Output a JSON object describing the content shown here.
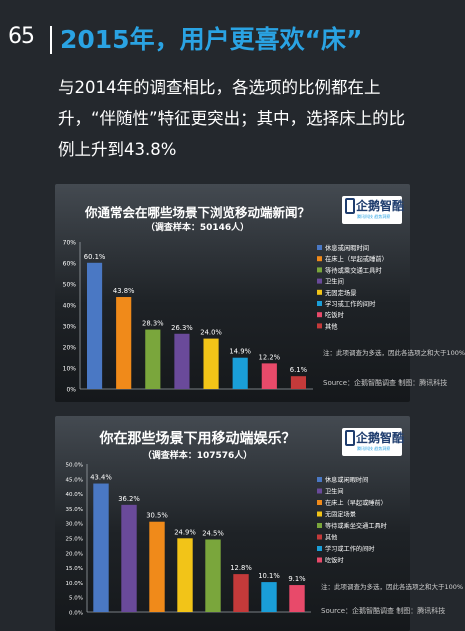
{
  "page": {
    "number": "65",
    "title": "2015年，用户更喜欢“床”",
    "intro": "与2014年的调查相比，各选项的比例都在上升，“伴随性”特征更突出；其中，选择床上的比例上升到43.8%"
  },
  "logo": {
    "name": "企鹅智酷",
    "tagline": "腾讯科技 趋势洞察"
  },
  "chart_data": [
    {
      "type": "bar",
      "title": "你通常会在哪些场景下浏览移动端新闻？",
      "subtitle": "（调查样本：50146人）",
      "categories": [
        "休息或闲暇时间",
        "在床上（早起或睡前）",
        "等待或乘交通工具时",
        "卫生间",
        "无固定场景",
        "学习或工作的间时",
        "吃饭时",
        "其他"
      ],
      "values": [
        60.1,
        43.8,
        28.3,
        26.3,
        24.0,
        14.9,
        12.2,
        6.1
      ],
      "value_labels": [
        "60.1%",
        "43.8%",
        "28.3%",
        "26.3%",
        "24.0%",
        "14.9%",
        "12.2%",
        "6.1%"
      ],
      "colors": [
        "#4a78c4",
        "#f08a1a",
        "#7aa63c",
        "#6a4a9a",
        "#f2c418",
        "#1a9ed8",
        "#e84a6a",
        "#c43a3a"
      ],
      "yticks": [
        "0%",
        "10%",
        "20%",
        "30%",
        "40%",
        "50%",
        "60%",
        "70%"
      ],
      "ylim": [
        0,
        70
      ],
      "legend_position": "right",
      "note": "注：此项调查为多选，因此各选项之和大于100%",
      "source": "Source：企鹅智酷调查 制图：腾讯科技"
    },
    {
      "type": "bar",
      "title": "你在那些场景下用移动端娱乐？",
      "subtitle": "（调查样本：107576人）",
      "categories": [
        "休息或闲暇时间",
        "卫生间",
        "在床上（早起或睡前）",
        "无固定场景",
        "等待或乘坐交通工具时",
        "其他",
        "学习或工作的间时",
        "吃饭时"
      ],
      "values": [
        43.4,
        36.2,
        30.5,
        24.9,
        24.5,
        12.8,
        10.1,
        9.1
      ],
      "value_labels": [
        "43.4%",
        "36.2%",
        "30.5%",
        "24.9%",
        "24.5%",
        "12.8%",
        "10.1%",
        "9.1%"
      ],
      "colors": [
        "#4a78c4",
        "#6a4a9a",
        "#f08a1a",
        "#f2c418",
        "#7aa63c",
        "#c43a3a",
        "#1a9ed8",
        "#e84a6a"
      ],
      "yticks": [
        "0.0%",
        "5.0%",
        "10.0%",
        "15.0%",
        "20.0%",
        "25.0%",
        "30.0%",
        "35.0%",
        "40.0%",
        "45.0%",
        "50.0%"
      ],
      "ylim": [
        0,
        50
      ],
      "legend_position": "right",
      "note": "注：此项调查为多选，因此各选项之和大于100%",
      "source": "Source：企鹅智酷调查 制图：腾讯科技"
    }
  ]
}
